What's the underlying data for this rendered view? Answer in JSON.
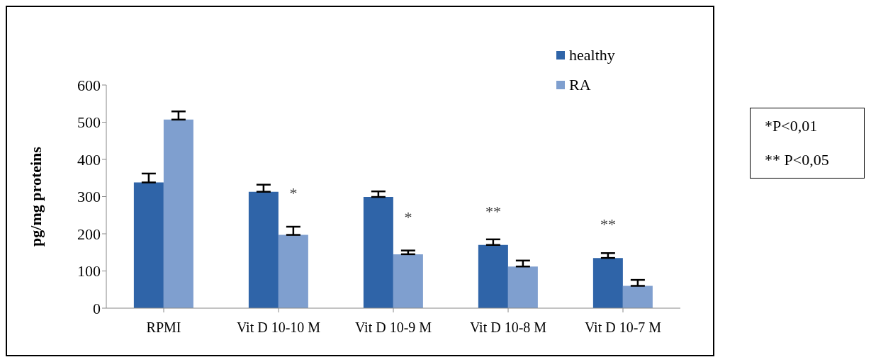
{
  "chart_data": {
    "type": "bar",
    "ylabel": "pg/mg proteins",
    "categories": [
      "RPMI",
      "Vit D 10-10 M",
      "Vit D 10-9 M",
      "Vit D 10-8 M",
      "Vit D 10-7 M"
    ],
    "series": [
      {
        "name": "healthy",
        "color": "#2f64a8",
        "values": [
          338,
          313,
          299,
          170,
          135
        ],
        "errors": [
          [
            338,
            362
          ],
          [
            313,
            332
          ],
          [
            299,
            314
          ],
          [
            170,
            185
          ],
          [
            135,
            148
          ]
        ]
      },
      {
        "name": "RA",
        "color": "#7f9fcf",
        "values": [
          507,
          197,
          145,
          112,
          60
        ],
        "errors": [
          [
            507,
            529
          ],
          [
            197,
            219
          ],
          [
            145,
            155
          ],
          [
            112,
            128
          ],
          [
            60,
            76
          ]
        ]
      }
    ],
    "ylim": [
      0,
      600
    ],
    "yticks": [
      0,
      100,
      200,
      300,
      400,
      500,
      600
    ],
    "grid": false,
    "legend": "top right",
    "annotations": [
      {
        "text": "*",
        "x": "Vit D 10-10 M",
        "y": 219
      },
      {
        "text": "*",
        "x": "Vit D 10-9 M",
        "y": 155
      },
      {
        "text": "**",
        "x": "Vit D 10-8 M",
        "y": 170
      },
      {
        "text": "**",
        "x": "Vit D 10-7 M",
        "y": 135
      },
      "*P<0,01",
      "** P<0,05"
    ]
  }
}
